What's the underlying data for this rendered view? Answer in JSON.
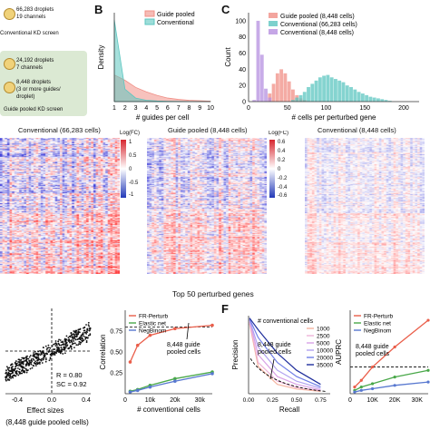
{
  "panel_a": {
    "row1": {
      "line1": "66,283 droplets",
      "line2": "19 channels"
    },
    "title1": "Conventional KD screen",
    "row2": {
      "line1": "24,192 droplets",
      "line2": "7 channels"
    },
    "row3": {
      "line1": "8,448 droplets",
      "line2": "(3 or more guides/",
      "line3": "droplet)"
    },
    "title2": "Guide pooled KD screen"
  },
  "panel_b": {
    "letter": "B"
  },
  "panel_c": {
    "letter": "C"
  },
  "panel_f": {
    "letter": "F"
  },
  "heatmaps": {
    "titles": [
      "Conventional (66,283 cells)",
      "Guide pooled (8,448 cells)",
      "Conventional (8,448 cells)"
    ],
    "colorbar_title": "Log(FC)",
    "colorbar_ticks_left": [
      "1",
      "0.5",
      "0",
      "-0.5",
      "-1"
    ],
    "colorbar_ticks_right": [
      "0.6",
      "0.4",
      "0.2",
      "0",
      "-0.2",
      "-0.4",
      "-0.6"
    ],
    "xlabel": "Top 50 perturbed genes"
  },
  "panel_d_bottom": {
    "r_text": "R = 0.80",
    "sc_text": "SC = 0.92",
    "xlabel": "Effect sizes",
    "sublabel": "(8,448 guide pooled cells)",
    "xticks": [
      "-0.4",
      "0.0",
      "0.4"
    ]
  },
  "panel_e_annot": "8,448 guide\npooled cells",
  "panel_f_annot": "8,448 guide\npooled cells",
  "panel_f_legend_title": "# conventional cells",
  "colors": {
    "guide_pooled": "#f08f86",
    "conventional": "#5cc6c0",
    "conventional_8448": "#b690e0",
    "fr_perturb": "#ea5e4a",
    "elastic_net": "#49a849",
    "negbinom": "#5878d0",
    "heat_pos": "#d7262f",
    "heat_neg": "#2239b8"
  },
  "chart_data": [
    {
      "type": "area",
      "title": "",
      "xlabel": "# guides per cell",
      "ylabel": "Density",
      "xlim": [
        1,
        10
      ],
      "xticks": [
        "1",
        "2",
        "3",
        "4",
        "5",
        "6",
        "7",
        "8",
        "9",
        "10"
      ],
      "legend": "top-right",
      "series": [
        {
          "name": "Guide pooled",
          "x": [
            1,
            2,
            3,
            4,
            5,
            6,
            7,
            8,
            9,
            10
          ],
          "values": [
            0.3,
            0.24,
            0.16,
            0.11,
            0.07,
            0.04,
            0.025,
            0.015,
            0.01,
            0.005
          ]
        },
        {
          "name": "Conventional",
          "x": [
            1,
            2,
            3,
            4,
            5,
            6,
            7,
            8,
            9,
            10
          ],
          "values": [
            0.92,
            0.14,
            0.04,
            0.015,
            0.008,
            0.004,
            0.002,
            0.001,
            0.0005,
            0.0002
          ]
        }
      ]
    },
    {
      "type": "bar",
      "title": "",
      "xlabel": "# cells per perturbed gene",
      "ylabel": "Count",
      "xticks": [
        "0",
        "50",
        "100",
        "150",
        "200"
      ],
      "yticks": [
        "0",
        "20",
        "40",
        "60",
        "80",
        "100"
      ],
      "xlim": [
        0,
        220
      ],
      "ylim": [
        0,
        110
      ],
      "legend": "top-right",
      "series": [
        {
          "name": "Guide pooled (8,448 cells)",
          "bins": [
            25,
            30,
            35,
            40,
            45,
            50,
            55,
            60,
            65,
            70
          ],
          "values": [
            10,
            22,
            35,
            40,
            35,
            25,
            15,
            8,
            4,
            2
          ]
        },
        {
          "name": "Conventional (66,283 cells)",
          "bins": [
            55,
            60,
            65,
            70,
            75,
            80,
            85,
            90,
            95,
            100,
            105,
            110,
            115,
            120,
            125,
            130,
            135,
            140,
            145,
            150,
            155,
            160,
            165,
            170,
            175,
            180
          ],
          "values": [
            2,
            5,
            8,
            12,
            18,
            22,
            26,
            30,
            32,
            33,
            30,
            28,
            26,
            24,
            20,
            18,
            15,
            12,
            10,
            8,
            6,
            5,
            4,
            3,
            2,
            1
          ]
        },
        {
          "name": "Conventional (8,448 cells)",
          "bins": [
            5,
            10,
            15,
            20,
            25
          ],
          "values": [
            2,
            100,
            58,
            16,
            5
          ]
        }
      ]
    },
    {
      "type": "scatter",
      "title": "",
      "xlabel": "Effect sizes",
      "xticks": [
        "-0.4",
        "0.0",
        "0.4"
      ],
      "annotations": [
        "R = 0.80",
        "SC = 0.92"
      ]
    },
    {
      "type": "line",
      "title": "",
      "xlabel": "# conventional cells",
      "ylabel": "Correlation",
      "xticks": [
        "0",
        "10k",
        "20k",
        "30k"
      ],
      "yticks": [
        "0.25",
        "0.50",
        "0.75"
      ],
      "ylim": [
        0.0,
        1.0
      ],
      "xlim": [
        0,
        35000
      ],
      "reference_line": 0.8,
      "legend": "top-left",
      "series": [
        {
          "name": "FR-Perturb",
          "x": [
            2000,
            5000,
            10000,
            20000,
            35000
          ],
          "values": [
            0.38,
            0.58,
            0.7,
            0.78,
            0.82
          ]
        },
        {
          "name": "Elastic net",
          "x": [
            2000,
            5000,
            10000,
            20000,
            35000
          ],
          "values": [
            0.03,
            0.05,
            0.1,
            0.18,
            0.26
          ]
        },
        {
          "name": "NegBinom",
          "x": [
            2000,
            5000,
            10000,
            20000,
            35000
          ],
          "values": [
            0.02,
            0.04,
            0.08,
            0.15,
            0.24
          ]
        }
      ]
    },
    {
      "type": "line",
      "title": "",
      "xlabel": "Recall",
      "ylabel": "Precision",
      "xticks": [
        "0.00",
        "0.25",
        "0.50",
        "0.75"
      ],
      "legend_title": "# conventional cells",
      "series": [
        {
          "name": "1000",
          "x": [
            0.01,
            0.1,
            0.3,
            0.5,
            0.75
          ],
          "values": [
            0.9,
            0.35,
            0.12,
            0.06,
            0.03
          ]
        },
        {
          "name": "2500",
          "x": [
            0.01,
            0.1,
            0.3,
            0.5,
            0.75
          ],
          "values": [
            0.92,
            0.4,
            0.16,
            0.08,
            0.04
          ]
        },
        {
          "name": "5000",
          "x": [
            0.01,
            0.1,
            0.3,
            0.5,
            0.75
          ],
          "values": [
            0.94,
            0.5,
            0.22,
            0.12,
            0.05
          ]
        },
        {
          "name": "10000",
          "x": [
            0.01,
            0.1,
            0.3,
            0.5,
            0.75
          ],
          "values": [
            0.95,
            0.6,
            0.3,
            0.16,
            0.07
          ]
        },
        {
          "name": "20000",
          "x": [
            0.01,
            0.1,
            0.3,
            0.5,
            0.75
          ],
          "values": [
            0.96,
            0.72,
            0.4,
            0.22,
            0.09
          ]
        },
        {
          "name": "35000",
          "x": [
            0.01,
            0.1,
            0.3,
            0.5,
            0.75
          ],
          "values": [
            0.97,
            0.82,
            0.52,
            0.3,
            0.12
          ]
        }
      ]
    },
    {
      "type": "line",
      "title": "",
      "xlabel": "",
      "ylabel": "AUPRC",
      "xticks": [
        "0",
        "10K",
        "20K",
        "30K"
      ],
      "reference_line": 0.08,
      "legend": "top-left",
      "series": [
        {
          "name": "FR-Perturb",
          "x": [
            2000,
            5000,
            10000,
            20000,
            35000
          ],
          "values": [
            0.02,
            0.04,
            0.08,
            0.14,
            0.22
          ]
        },
        {
          "name": "Elastic net",
          "x": [
            2000,
            5000,
            10000,
            20000,
            35000
          ],
          "values": [
            0.01,
            0.02,
            0.03,
            0.05,
            0.07
          ]
        },
        {
          "name": "NegBinom",
          "x": [
            2000,
            5000,
            10000,
            20000,
            35000
          ],
          "values": [
            0.005,
            0.01,
            0.015,
            0.025,
            0.035
          ]
        }
      ]
    }
  ]
}
